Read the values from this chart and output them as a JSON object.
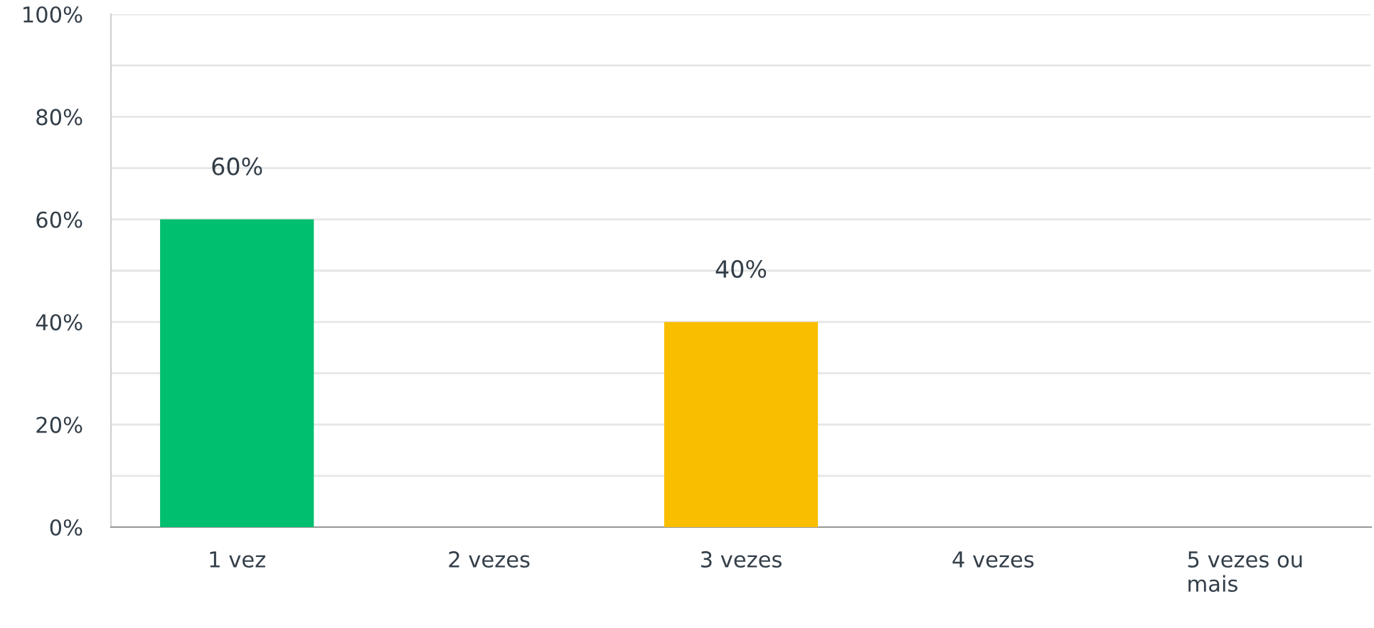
{
  "chart_data": {
    "type": "bar",
    "categories": [
      "1 vez",
      "2 vezes",
      "3 vezes",
      "4 vezes",
      "5 vezes ou\nmais"
    ],
    "values": [
      60,
      0,
      40,
      0,
      0
    ],
    "colors": [
      "#00bf6f",
      null,
      "#f9be00",
      null,
      null
    ],
    "value_labels": [
      "60%",
      null,
      "40%",
      null,
      null
    ],
    "ylim": [
      0,
      100
    ],
    "yticks": [
      {
        "value": 0,
        "label": "0%"
      },
      {
        "value": 10,
        "label": null
      },
      {
        "value": 20,
        "label": "20%"
      },
      {
        "value": 30,
        "label": null
      },
      {
        "value": 40,
        "label": "40%"
      },
      {
        "value": 50,
        "label": null
      },
      {
        "value": 60,
        "label": "60%"
      },
      {
        "value": 70,
        "label": null
      },
      {
        "value": 80,
        "label": "80%"
      },
      {
        "value": 90,
        "label": null
      },
      {
        "value": 100,
        "label": "100%"
      }
    ],
    "grid": "y"
  }
}
